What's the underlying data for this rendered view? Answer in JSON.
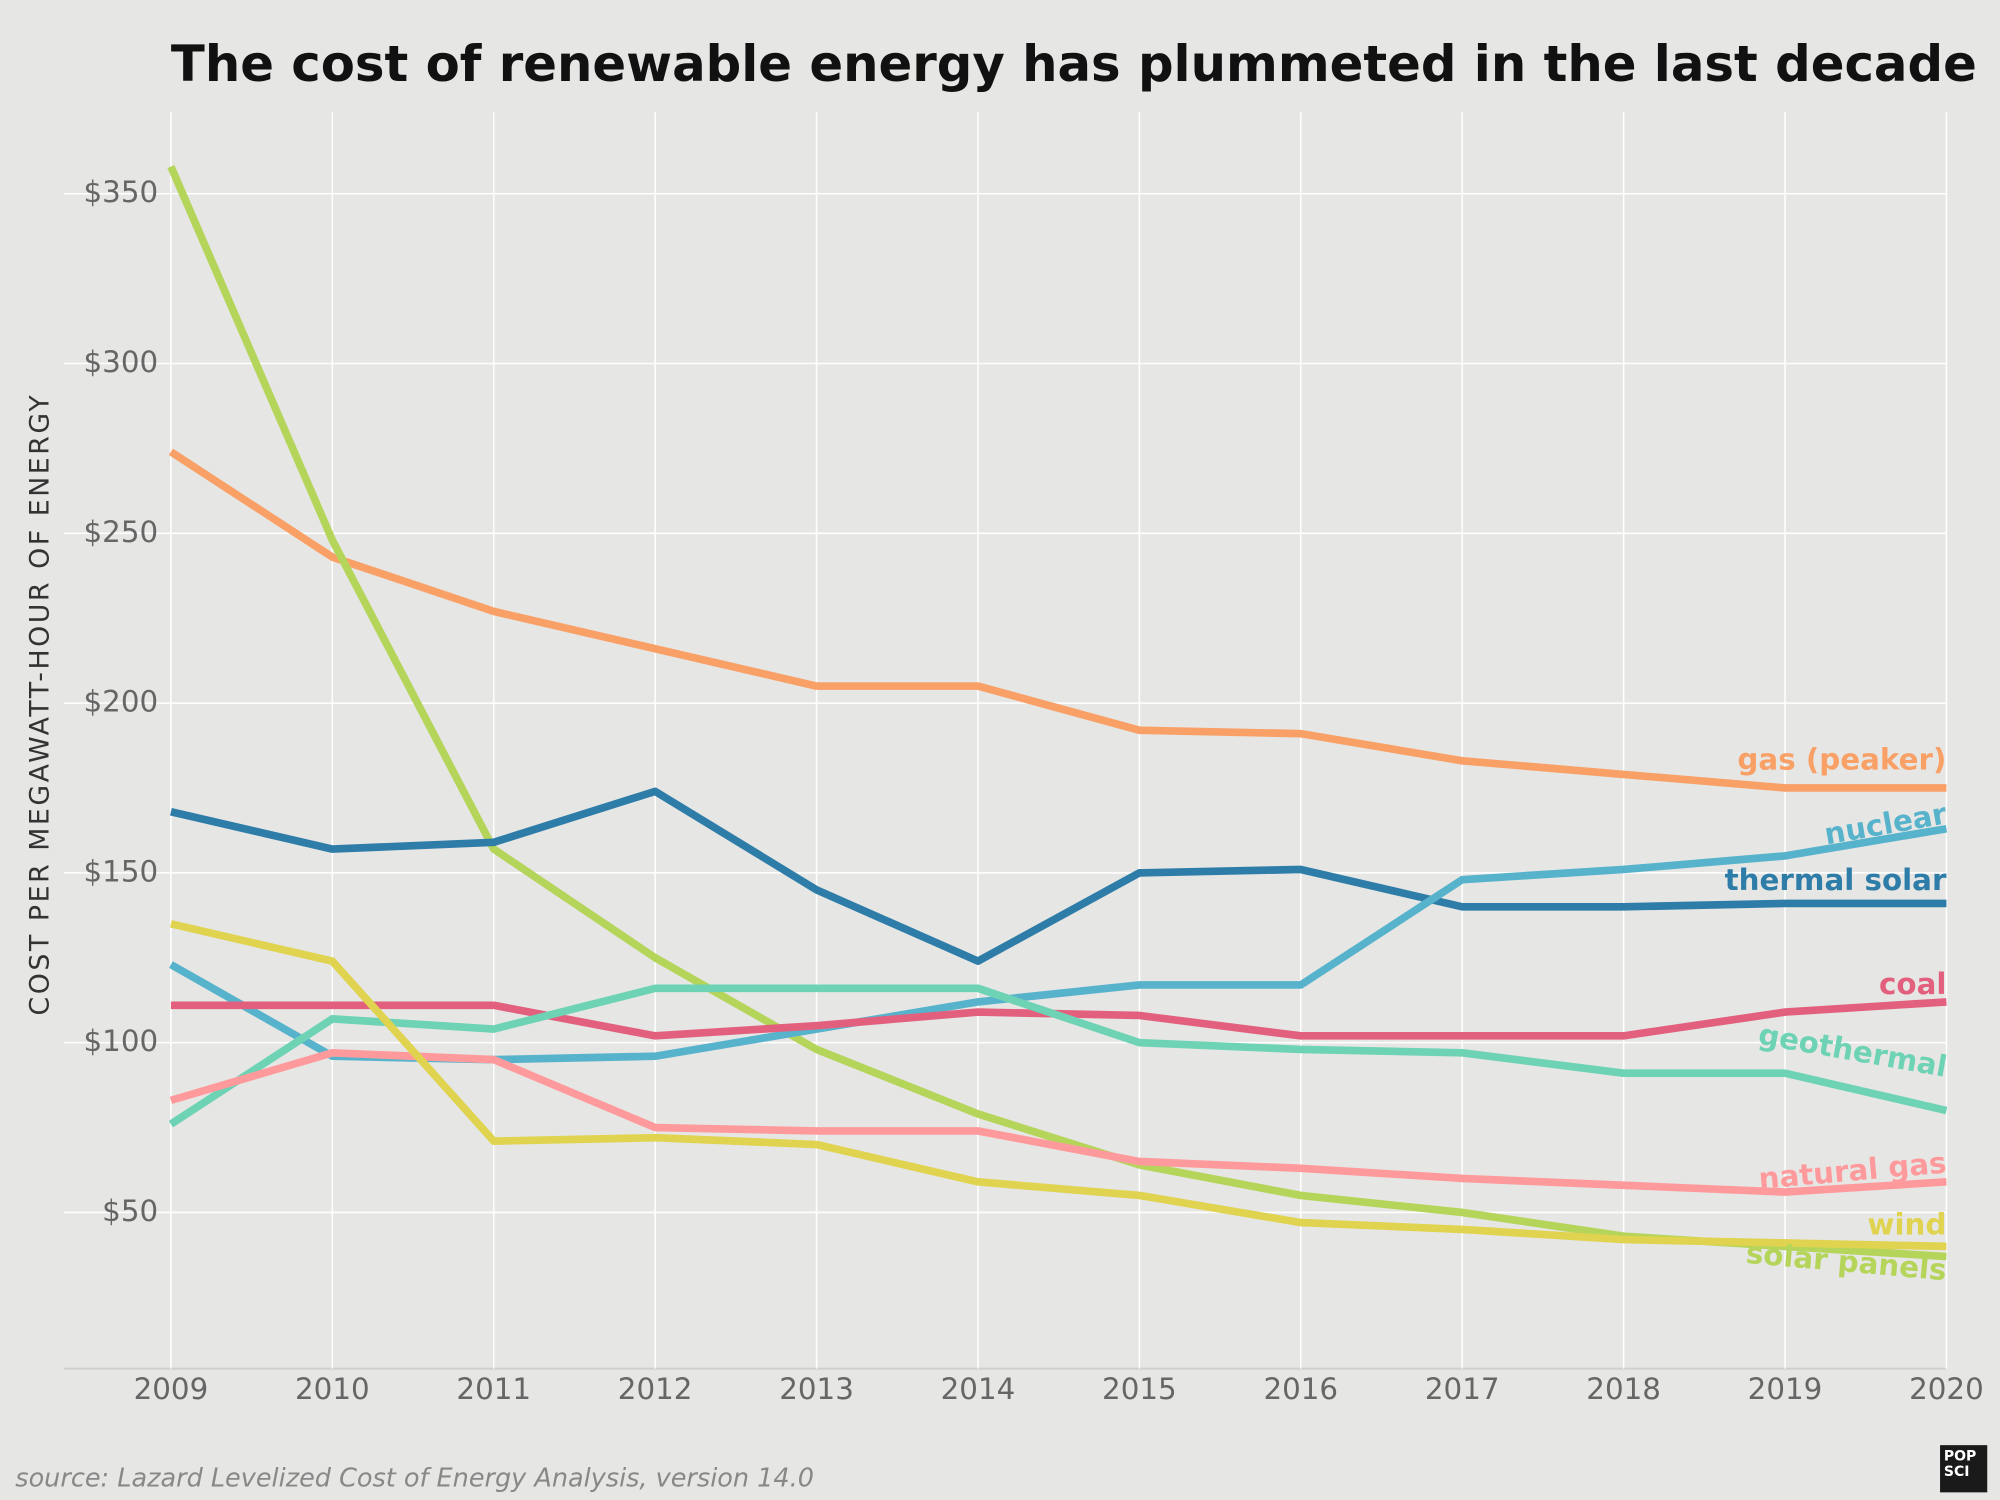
{
  "chart_data": {
    "type": "line",
    "title": "The cost of renewable energy has plummeted in the last decade",
    "y_label": "COST PER MEGAWATT-HOUR OF ENERGY",
    "source": "source: Lazard Levelized Cost of Energy Analysis, version 14.0",
    "logo": [
      "POP",
      "SCI"
    ],
    "x": [
      2009,
      2010,
      2011,
      2012,
      2013,
      2014,
      2015,
      2016,
      2017,
      2018,
      2019,
      2020
    ],
    "xlim": [
      2009,
      2020
    ],
    "xticks": [
      2009,
      2010,
      2011,
      2012,
      2013,
      2014,
      2015,
      2016,
      2017,
      2018,
      2019,
      2020
    ],
    "ylim": [
      4,
      374
    ],
    "yticks": [
      {
        "value": 50,
        "label": "$50"
      },
      {
        "value": 100,
        "label": "$100"
      },
      {
        "value": 150,
        "label": "$150"
      },
      {
        "value": 200,
        "label": "$200"
      },
      {
        "value": 250,
        "label": "$250"
      },
      {
        "value": 300,
        "label": "$300"
      },
      {
        "value": 350,
        "label": "$350"
      }
    ],
    "grid": true,
    "series": [
      {
        "name": "gas (peaker)",
        "color": "#f9a066",
        "values": [
          274,
          243,
          227,
          216,
          205,
          205,
          192,
          191,
          183,
          179,
          175,
          175
        ]
      },
      {
        "name": "solar panels",
        "color": "#b5d55a",
        "values": [
          358,
          248,
          157,
          125,
          98,
          79,
          64,
          55,
          50,
          43,
          40,
          37
        ]
      },
      {
        "name": "thermal solar",
        "color": "#2e7ca8",
        "values": [
          168,
          157,
          159,
          174,
          145,
          124,
          150,
          151,
          140,
          140,
          141,
          141
        ]
      },
      {
        "name": "nuclear",
        "color": "#57b3cc",
        "values": [
          123,
          96,
          95,
          96,
          104,
          112,
          117,
          117,
          148,
          151,
          155,
          163
        ]
      },
      {
        "name": "coal",
        "color": "#e2607e",
        "values": [
          111,
          111,
          111,
          102,
          105,
          109,
          108,
          102,
          102,
          102,
          109,
          112
        ]
      },
      {
        "name": "geothermal",
        "color": "#6dd3b4",
        "values": [
          76,
          107,
          104,
          116,
          116,
          116,
          100,
          98,
          97,
          91,
          91,
          80
        ]
      },
      {
        "name": "natural gas",
        "color": "#ff9a9c",
        "values": [
          83,
          97,
          95,
          75,
          74,
          74,
          65,
          63,
          60,
          58,
          56,
          59
        ]
      },
      {
        "name": "wind",
        "color": "#e0d34f",
        "values": [
          135,
          124,
          71,
          72,
          70,
          59,
          55,
          47,
          45,
          42,
          41,
          40
        ]
      }
    ]
  }
}
